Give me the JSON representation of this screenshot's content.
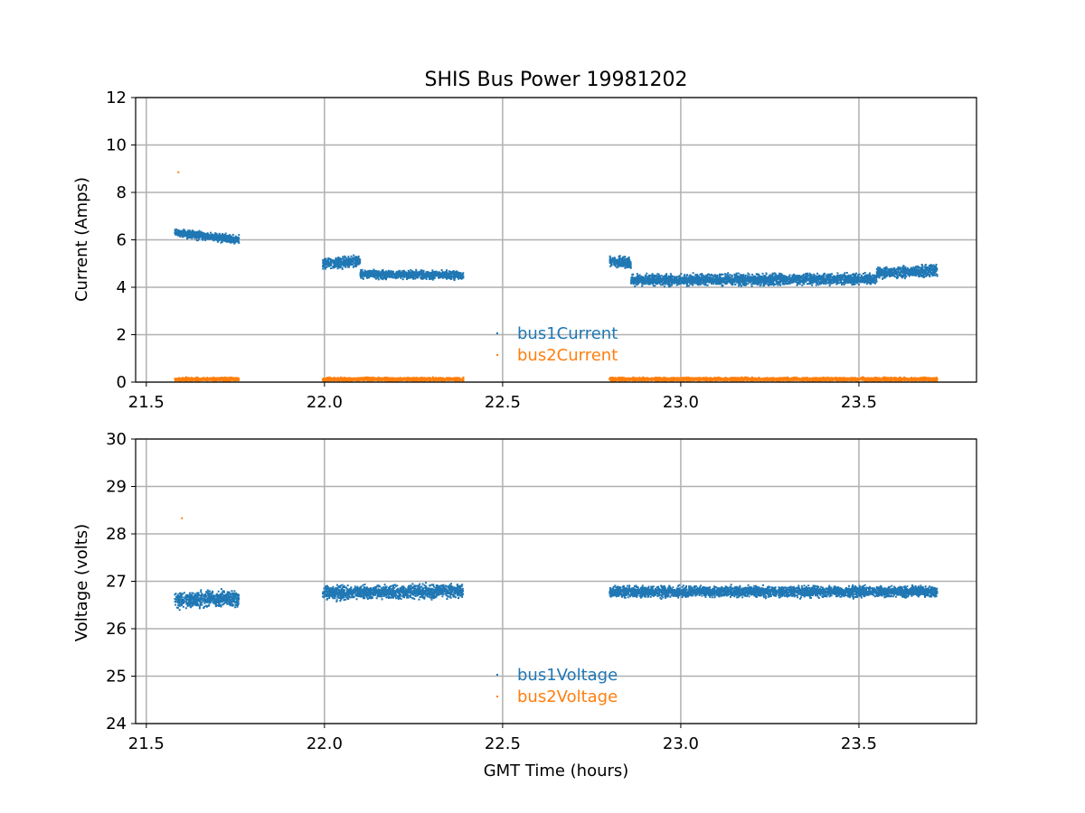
{
  "chart_data": [
    {
      "type": "scatter",
      "title": "SHIS Bus Power 19981202",
      "xlabel": "",
      "ylabel": "Current (Amps)",
      "xlim": [
        21.47,
        23.83
      ],
      "ylim": [
        0,
        12
      ],
      "xticks": [
        "21.5",
        "22.0",
        "22.5",
        "23.0",
        "23.5"
      ],
      "yticks": [
        "0",
        "2",
        "4",
        "6",
        "8",
        "10",
        "12"
      ],
      "grid": true,
      "legend_position": "lower-center",
      "series": [
        {
          "name": "bus1Current",
          "color": "#1f77b4",
          "segments": [
            {
              "x_start": 21.58,
              "x_end": 21.76,
              "y_start": 6.3,
              "y_end": 6.0,
              "spread": 0.15
            },
            {
              "x_start": 21.995,
              "x_end": 22.1,
              "y_start": 5.0,
              "y_end": 5.1,
              "spread": 0.2
            },
            {
              "x_start": 22.1,
              "x_end": 22.39,
              "y_start": 4.55,
              "y_end": 4.5,
              "spread": 0.15
            },
            {
              "x_start": 22.8,
              "x_end": 22.86,
              "y_start": 5.1,
              "y_end": 5.0,
              "spread": 0.2
            },
            {
              "x_start": 22.86,
              "x_end": 23.55,
              "y_start": 4.3,
              "y_end": 4.35,
              "spread": 0.2
            },
            {
              "x_start": 23.55,
              "x_end": 23.72,
              "y_start": 4.6,
              "y_end": 4.7,
              "spread": 0.2
            }
          ]
        },
        {
          "name": "bus2Current",
          "color": "#ff7f0e",
          "outliers": [
            [
              21.59,
              8.85
            ]
          ],
          "segments": [
            {
              "x_start": 21.58,
              "x_end": 21.76,
              "y_start": 0.12,
              "y_end": 0.12,
              "spread": 0.06
            },
            {
              "x_start": 21.995,
              "x_end": 22.39,
              "y_start": 0.12,
              "y_end": 0.12,
              "spread": 0.06
            },
            {
              "x_start": 22.8,
              "x_end": 23.72,
              "y_start": 0.12,
              "y_end": 0.12,
              "spread": 0.06
            }
          ]
        }
      ]
    },
    {
      "type": "scatter",
      "title": "",
      "xlabel": "GMT Time (hours)",
      "ylabel": "Voltage (volts)",
      "xlim": [
        21.47,
        23.83
      ],
      "ylim": [
        24,
        30
      ],
      "xticks": [
        "21.5",
        "22.0",
        "22.5",
        "23.0",
        "23.5"
      ],
      "yticks": [
        "24",
        "25",
        "26",
        "27",
        "28",
        "29",
        "30"
      ],
      "grid": true,
      "legend_position": "lower-center",
      "series": [
        {
          "name": "bus1Voltage",
          "color": "#1f77b4",
          "segments": [
            {
              "x_start": 21.58,
              "x_end": 21.76,
              "y_start": 26.6,
              "y_end": 26.65,
              "spread": 0.15
            },
            {
              "x_start": 21.995,
              "x_end": 22.39,
              "y_start": 26.75,
              "y_end": 26.8,
              "spread": 0.12
            },
            {
              "x_start": 22.8,
              "x_end": 23.72,
              "y_start": 26.78,
              "y_end": 26.78,
              "spread": 0.1
            }
          ]
        },
        {
          "name": "bus2Voltage",
          "color": "#ff7f0e",
          "outliers": [
            [
              21.6,
              28.33
            ]
          ],
          "segments": []
        }
      ]
    }
  ]
}
